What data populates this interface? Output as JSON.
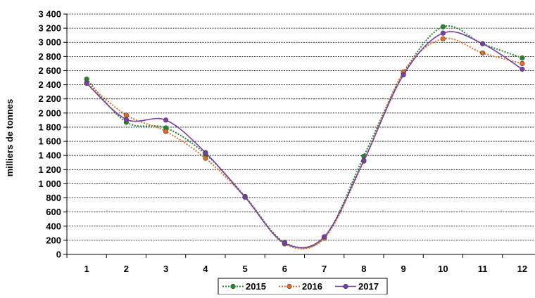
{
  "chart_data": {
    "type": "line",
    "title": "",
    "xlabel": "",
    "ylabel": "milliers de tonnes",
    "x": [
      1,
      2,
      3,
      4,
      5,
      6,
      7,
      8,
      9,
      10,
      11,
      12
    ],
    "x_tick_labels": [
      "1",
      "2",
      "3",
      "4",
      "5",
      "6",
      "7",
      "8",
      "9",
      "10",
      "11",
      "12"
    ],
    "ylim": [
      0,
      3400
    ],
    "y_tick_step": 200,
    "y_tick_labels": [
      "0",
      "200",
      "400",
      "600",
      "800",
      "1 000",
      "1 200",
      "1 400",
      "1 600",
      "1 800",
      "2 000",
      "2 200",
      "2 400",
      "2 600",
      "2 800",
      "3 000",
      "3 200",
      "3 400"
    ],
    "grid": "horizontal dashed",
    "legend_position": "bottom-center",
    "series": [
      {
        "name": "2015",
        "color": "#1f8a2a",
        "style": "dotted",
        "values": [
          2480,
          1870,
          1790,
          1420,
          820,
          170,
          240,
          1390,
          2560,
          3220,
          2980,
          2780
        ]
      },
      {
        "name": "2016",
        "color": "#e07020",
        "style": "dotted",
        "values": [
          2430,
          1970,
          1740,
          1360,
          810,
          150,
          230,
          1320,
          2580,
          3050,
          2850,
          2700
        ]
      },
      {
        "name": "2017",
        "color": "#7a3ca8",
        "style": "solid",
        "values": [
          2420,
          1910,
          1900,
          1440,
          810,
          160,
          250,
          1330,
          2540,
          3130,
          2980,
          2620
        ]
      }
    ]
  }
}
